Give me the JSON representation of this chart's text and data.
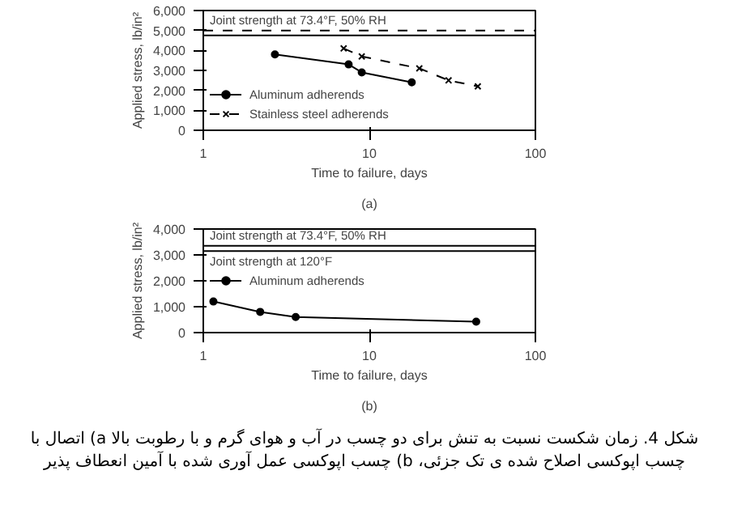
{
  "chart_data": [
    {
      "type": "line",
      "title": "(a)",
      "xlabel": "Time to failure, days",
      "ylabel": "Applied stress, lb/in²",
      "log": "x",
      "xlim": [
        1,
        100
      ],
      "xticks": [
        1,
        10,
        100
      ],
      "ylim": [
        0,
        6000
      ],
      "yticks": [
        {
          "value": 0,
          "label": "0"
        },
        {
          "value": 1000,
          "label": "1,000"
        },
        {
          "value": 2000,
          "label": "2,000"
        },
        {
          "value": 3000,
          "label": "3,000"
        },
        {
          "value": 4000,
          "label": "4,000"
        },
        {
          "value": 5000,
          "label": "5,000"
        },
        {
          "value": 6000,
          "label": "6,000"
        }
      ],
      "grid": false,
      "legend": "bottom left",
      "ref_lines": [
        {
          "axis": "y",
          "value": 5000,
          "label": "Joint strength at 73.4°F, 50% RH",
          "line_style": "dashed",
          "color": "#000000"
        },
        {
          "axis": "y",
          "value": 4750,
          "label": null,
          "color": "#000000"
        }
      ],
      "series": [
        {
          "name": "Aluminum adherends",
          "color": "#000000",
          "marker": "circle",
          "line_style": "solid",
          "x": [
            2.7,
            7.5,
            9,
            18
          ],
          "values": [
            3800,
            3300,
            2900,
            2400
          ]
        },
        {
          "name": "Stainless steel adherends",
          "color": "#000000",
          "marker": "cross",
          "line_style": "dashed",
          "x": [
            7,
            9,
            20,
            30,
            45
          ],
          "values": [
            4100,
            3700,
            3100,
            2500,
            2200
          ]
        }
      ]
    },
    {
      "type": "line",
      "title": "(b)",
      "xlabel": "Time to failure, days",
      "ylabel": "Applied stress, lb/in²",
      "log": "x",
      "xlim": [
        1,
        100
      ],
      "xticks": [
        1,
        10,
        100
      ],
      "ylim": [
        0,
        4000
      ],
      "yticks": [
        {
          "value": 0,
          "label": "0"
        },
        {
          "value": 1000,
          "label": "1,000"
        },
        {
          "value": 2000,
          "label": "2,000"
        },
        {
          "value": 3000,
          "label": "3,000"
        },
        {
          "value": 4000,
          "label": "4,000"
        }
      ],
      "grid": false,
      "legend": "left",
      "ref_lines": [
        {
          "axis": "y",
          "value": 3350,
          "label": "Joint strength at 73.4°F, 50% RH",
          "color": "#000000"
        },
        {
          "axis": "y",
          "value": 3150,
          "label": "Joint strength at 120°F",
          "color": "#000000"
        }
      ],
      "series": [
        {
          "name": "Aluminum adherends",
          "color": "#000000",
          "marker": "circle",
          "line_style": "solid",
          "x": [
            1.15,
            2.2,
            3.6,
            44
          ],
          "values": [
            1200,
            800,
            600,
            420
          ]
        }
      ],
      "annotations": [
        "شکل 4. زمان شکست نسبت به تنش برای دو چسب در آب و هوای گرم و با رطوبت بالا a) اتصال با چسب اپوکسی اصلاح شده ی تک جزئی، b) چسب اپوکسی عمل آوری شده با آمین انعطاف پذیر"
      ]
    }
  ]
}
